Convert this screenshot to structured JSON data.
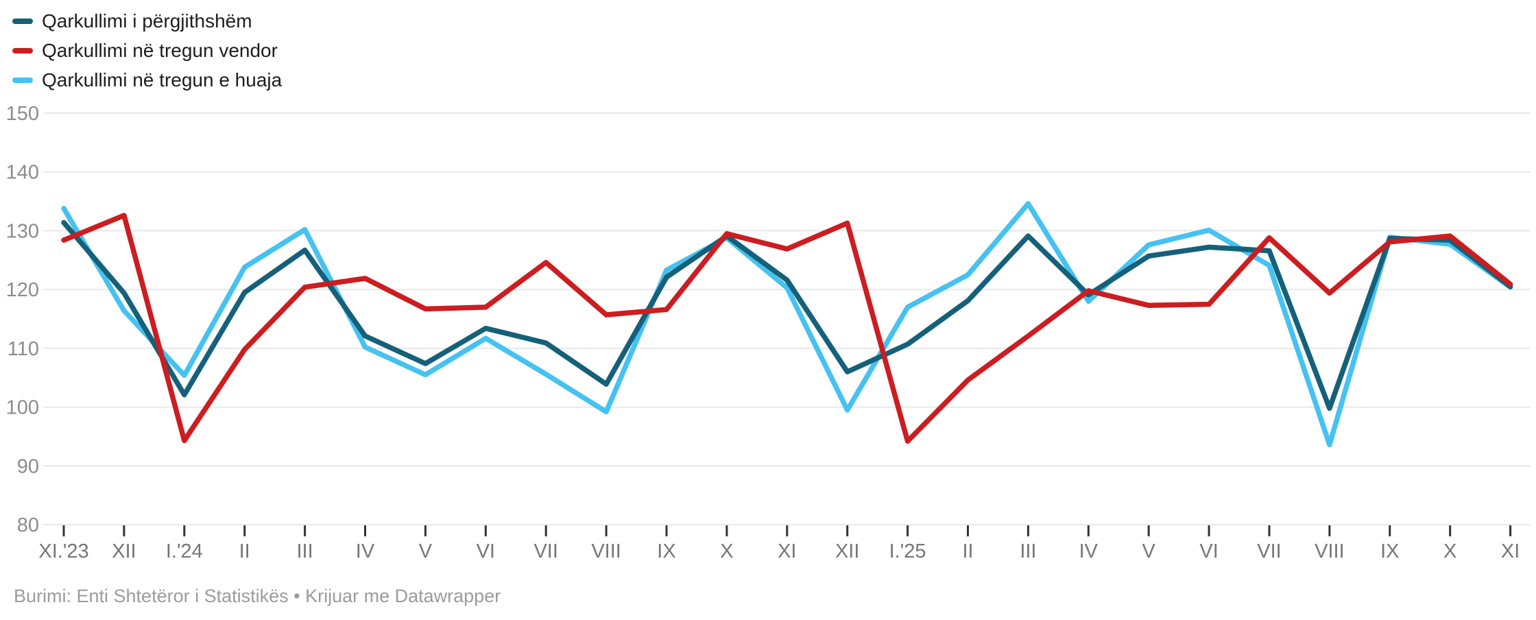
{
  "legend": {
    "items": [
      {
        "label": "Qarkullimi i përgjithshëm",
        "color": "#15607a"
      },
      {
        "label": "Qarkullimi në tregun vendor",
        "color": "#cc1d20"
      },
      {
        "label": "Qarkullimi në tregun e huaja",
        "color": "#45c2f1"
      }
    ]
  },
  "y_axis": {
    "ticks": [
      150,
      140,
      130,
      120,
      110,
      100,
      90,
      80
    ]
  },
  "x_axis": {
    "labels": [
      "XI.'23",
      "XII",
      "I.'24",
      "II",
      "III",
      "IV",
      "V",
      "VI",
      "VII",
      "VIII",
      "IX",
      "X",
      "XI",
      "XII",
      "I.'25",
      "II",
      "III",
      "IV",
      "V",
      "VI",
      "VII",
      "VIII",
      "IX",
      "X",
      "XI"
    ]
  },
  "footer": {
    "source": "Burimi: Enti Shtetëror i Statistikës • Krijuar me Datawrapper"
  },
  "chart_data": {
    "type": "line",
    "categories": [
      "XI.'23",
      "XII",
      "I.'24",
      "II",
      "III",
      "IV",
      "V",
      "VI",
      "VII",
      "VIII",
      "IX",
      "X",
      "XI",
      "XII",
      "I.'25",
      "II",
      "III",
      "IV",
      "V",
      "VI",
      "VII",
      "VIII",
      "IX",
      "X",
      "XI"
    ],
    "series": [
      {
        "name": "Qarkullimi i përgjithshëm",
        "color": "#15607a",
        "values": [
          131.4,
          119.4,
          102.1,
          119.5,
          126.7,
          112.1,
          107.4,
          113.4,
          110.9,
          103.9,
          122.1,
          129.1,
          121.6,
          106.0,
          110.7,
          118.1,
          129.1,
          119.1,
          125.7,
          127.2,
          126.6,
          99.8,
          128.7,
          128.4,
          120.5
        ]
      },
      {
        "name": "Qarkullimi në tregun vendor",
        "color": "#cc1d20",
        "values": [
          128.4,
          132.6,
          94.3,
          109.8,
          120.4,
          121.9,
          116.7,
          117.0,
          124.6,
          115.7,
          116.6,
          129.5,
          126.9,
          131.3,
          94.2,
          104.6,
          112.1,
          119.8,
          117.3,
          117.5,
          128.8,
          119.4,
          128.1,
          129.1,
          120.9
        ]
      },
      {
        "name": "Qarkullimi në tregun e huaja",
        "color": "#45c2f1",
        "values": [
          133.8,
          116.4,
          105.4,
          123.8,
          130.2,
          110.2,
          105.5,
          111.7,
          105.6,
          99.2,
          123.3,
          128.8,
          120.3,
          99.5,
          117.0,
          122.5,
          134.6,
          118.0,
          127.6,
          130.1,
          124.1,
          93.6,
          128.9,
          127.7,
          120.4
        ]
      }
    ],
    "ylim": [
      80,
      150
    ],
    "grid": "horizontal",
    "legend_position": "top-left",
    "title": "",
    "xlabel": "",
    "ylabel": ""
  }
}
